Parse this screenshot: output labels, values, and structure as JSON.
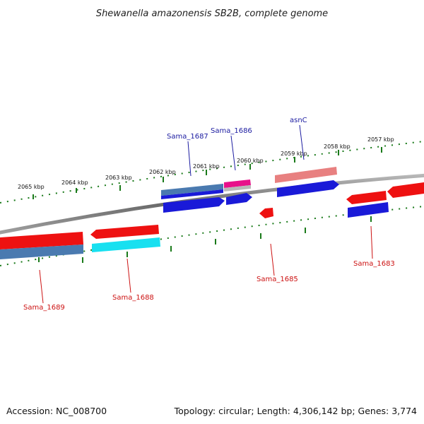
{
  "title": "Shewanella amazonensis SB2B, complete genome",
  "footer": {
    "accession": "Accession: NC_008700",
    "summary": "Topology: circular; Length: 4,306,142 bp; Genes: 3,774"
  },
  "scale_labels": [
    "2065 kbp",
    "2064 kbp",
    "2063 kbp",
    "2062 kbp",
    "2061 kbp",
    "2060 kbp",
    "2059 kbp",
    "2058 kbp",
    "2057 kbp"
  ],
  "gene_labels": {
    "sama_1687": "Sama_1687",
    "sama_1686": "Sama_1686",
    "asnc": "asnC",
    "sama_1689": "Sama_1689",
    "sama_1688": "Sama_1688",
    "sama_1685": "Sama_1685",
    "sama_1683": "Sama_1683"
  },
  "colors": {
    "red": "#ee1111",
    "blue": "#1a1ad8",
    "steelblue": "#4a7ab0",
    "cyan": "#18e0f0",
    "salmon": "#e88080",
    "magenta": "#e8108a",
    "upper_label": "#1a1aa0",
    "lower_label": "#cc1111",
    "tick": "#1a7a1a",
    "backbone": "#808080"
  }
}
